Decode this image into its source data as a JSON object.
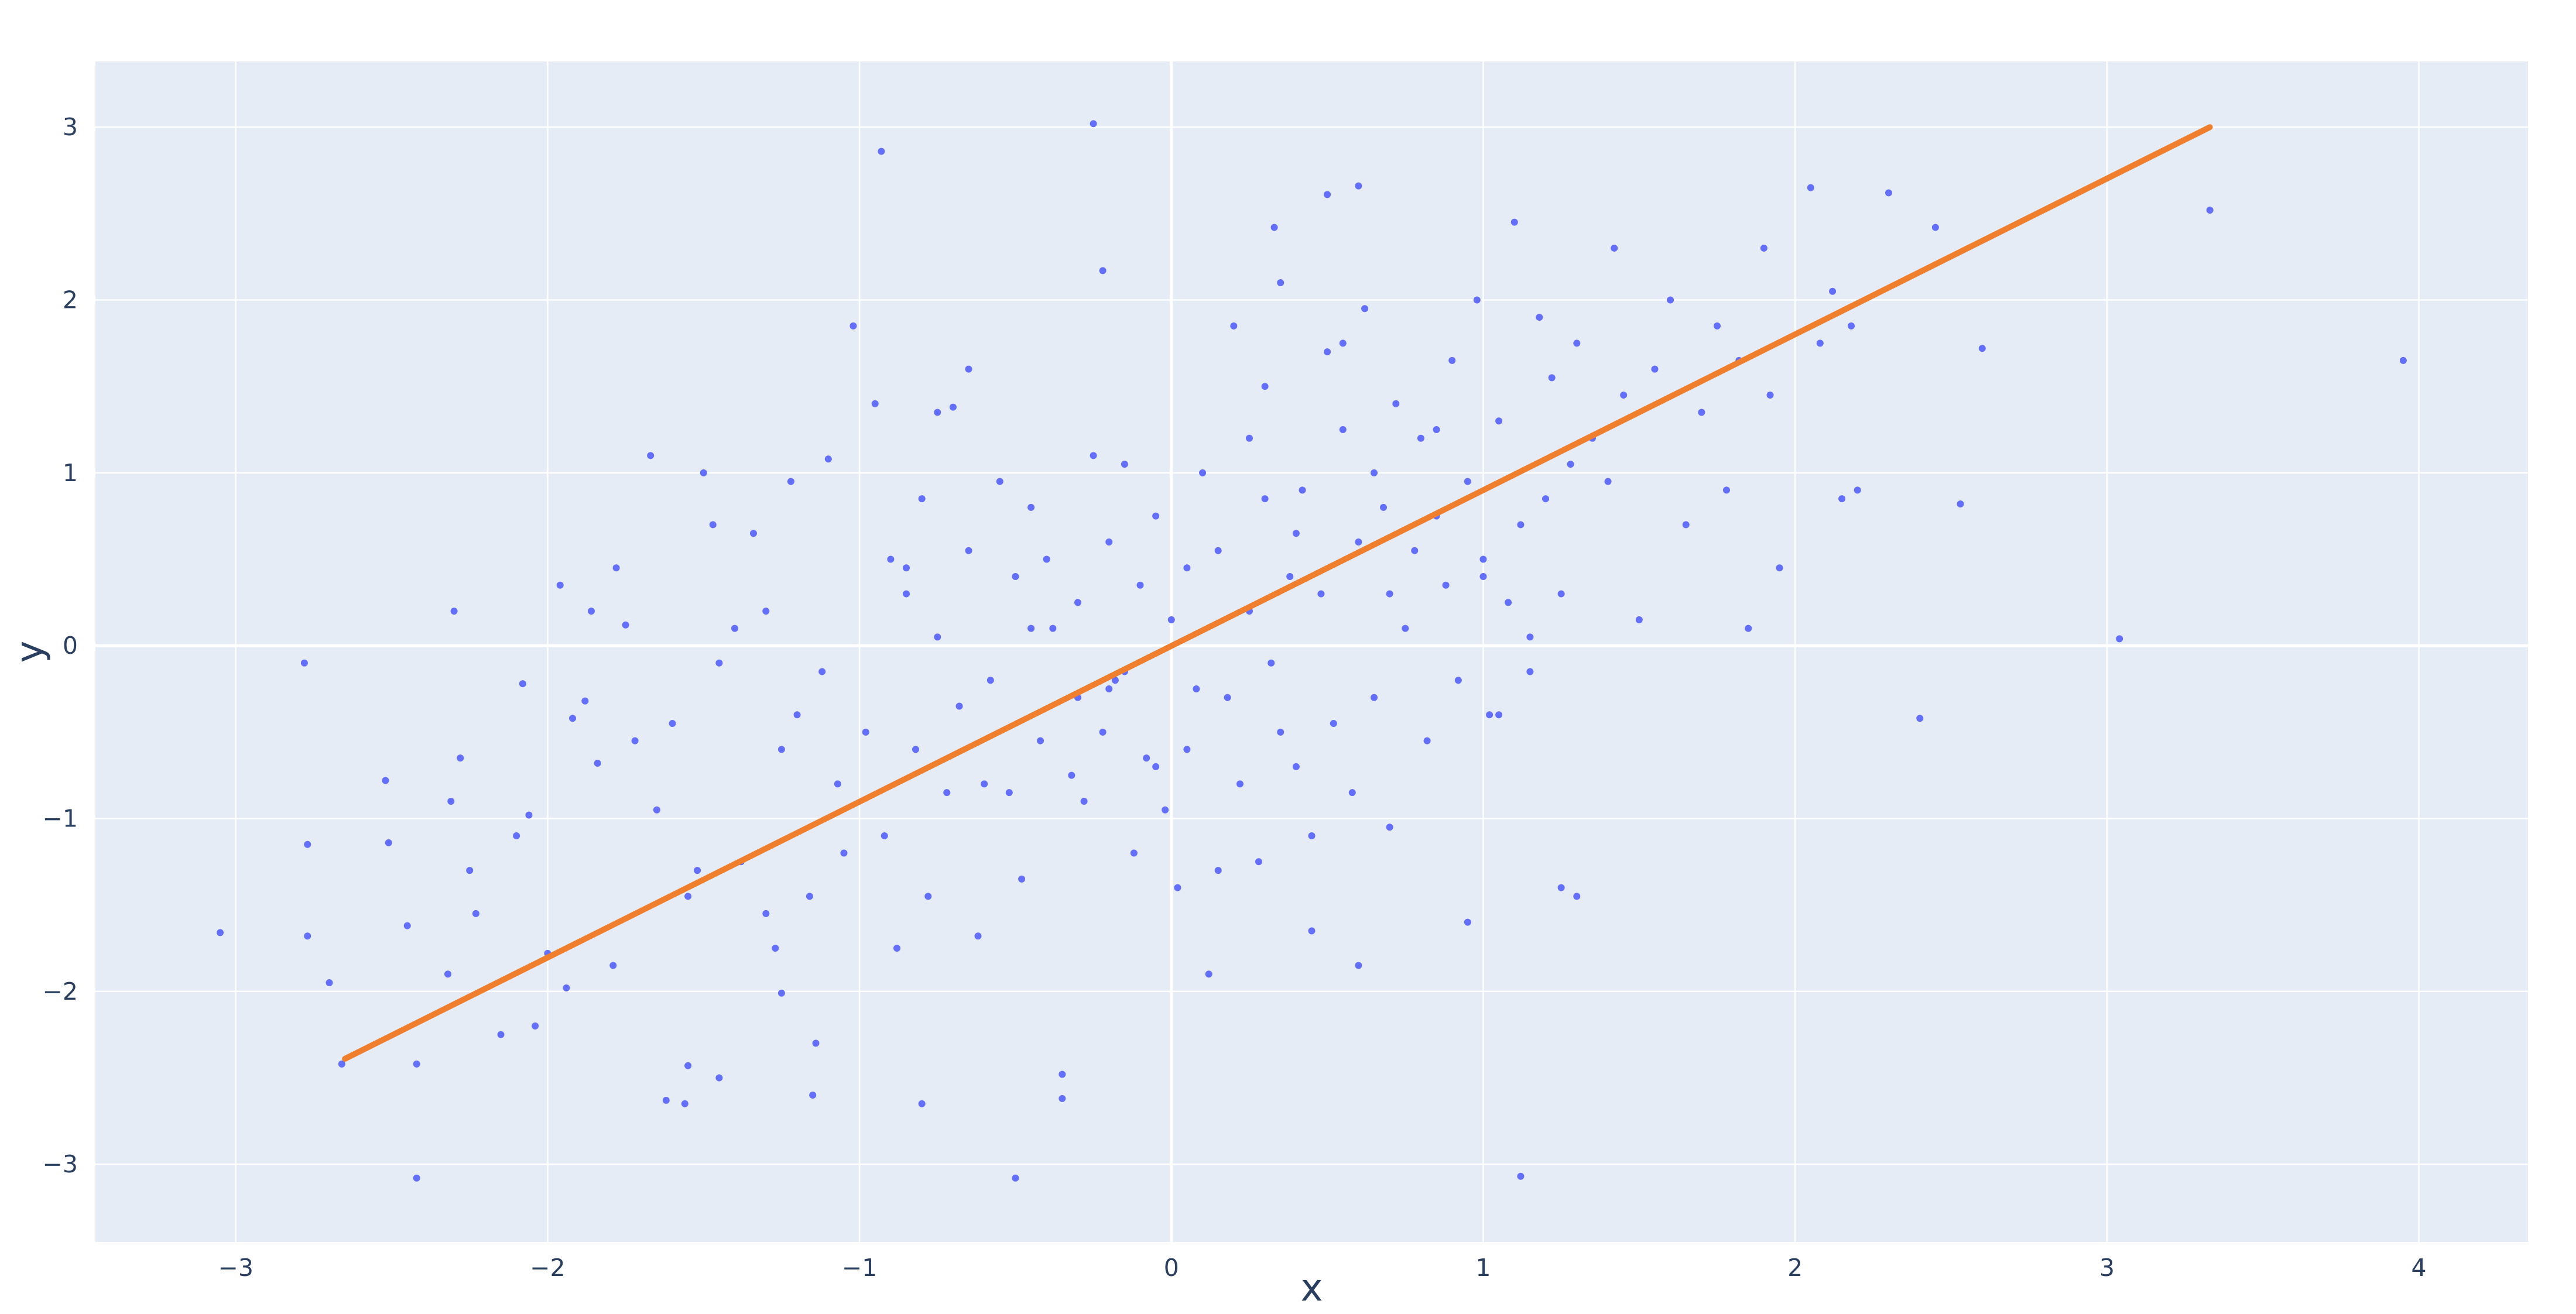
{
  "chart_data": {
    "type": "scatter",
    "title": "",
    "xlabel": "x",
    "ylabel": "y",
    "xlim": [
      -3.45,
      4.35
    ],
    "ylim": [
      -3.45,
      3.38
    ],
    "x_ticks": [
      -3,
      -2,
      -1,
      0,
      1,
      2,
      3,
      4
    ],
    "y_ticks": [
      -3,
      -2,
      -1,
      0,
      1,
      2,
      3
    ],
    "x_tick_labels": [
      "−3",
      "−2",
      "−1",
      "0",
      "1",
      "2",
      "3",
      "4"
    ],
    "y_tick_labels": [
      "−3",
      "−2",
      "−1",
      "0",
      "1",
      "2",
      "3"
    ],
    "grid": true,
    "legend": "none",
    "colors": {
      "plot_background": "#e5ecf6",
      "grid": "#ffffff",
      "points": "#636efa",
      "trend_line": "#ef7f2d",
      "text": "#2a3f5f"
    },
    "series": [
      {
        "type": "scatter",
        "x": [
          -3.05,
          -2.78,
          -2.77,
          -2.77,
          -2.7,
          -2.66,
          -2.52,
          -2.51,
          -2.45,
          -2.42,
          -2.32,
          -2.31,
          -2.3,
          -2.28,
          -2.25,
          -2.23,
          -2.15,
          -2.1,
          -2.08,
          -2.06,
          -2.04,
          -2.0,
          -1.96,
          -1.94,
          -1.92,
          -1.88,
          -1.86,
          -1.84,
          -1.79,
          -1.78,
          -1.75,
          -1.72,
          -1.67,
          -1.65,
          -1.6,
          -1.56,
          -1.55,
          -1.52,
          -1.5,
          -1.47,
          -1.45,
          -1.4,
          -1.38,
          -1.34,
          -1.3,
          -1.27,
          -1.25,
          -1.22,
          -1.2,
          -1.16,
          -1.14,
          -1.12,
          -1.1,
          -1.07,
          -1.05,
          -1.02,
          -0.98,
          -0.95,
          -0.92,
          -0.9,
          -0.88,
          -0.85,
          -0.82,
          -0.8,
          -0.78,
          -0.75,
          -0.72,
          -0.7,
          -0.68,
          -0.65,
          -0.62,
          -0.58,
          -0.55,
          -0.52,
          -0.5,
          -0.48,
          -0.45,
          -0.42,
          -0.38,
          -0.35,
          -0.32,
          -0.3,
          -0.28,
          -0.25,
          -0.22,
          -0.2,
          -0.18,
          -0.15,
          -0.12,
          -0.1,
          -0.08,
          -0.05,
          -0.02,
          0.0,
          0.02,
          0.05,
          0.08,
          0.1,
          0.12,
          0.15,
          0.18,
          0.2,
          0.22,
          0.25,
          0.28,
          0.3,
          0.32,
          0.35,
          0.38,
          0.4,
          0.42,
          0.45,
          0.48,
          0.5,
          0.52,
          0.55,
          0.58,
          0.6,
          0.62,
          0.65,
          0.68,
          0.7,
          0.72,
          0.75,
          0.78,
          0.8,
          0.82,
          0.85,
          0.88,
          0.9,
          0.92,
          0.95,
          0.98,
          1.0,
          1.02,
          1.05,
          1.08,
          1.1,
          1.12,
          1.15,
          1.18,
          1.2,
          1.22,
          1.25,
          1.28,
          1.3,
          1.35,
          1.4,
          1.42,
          1.45,
          1.5,
          1.55,
          1.6,
          1.65,
          1.7,
          1.75,
          1.78,
          1.82,
          1.85,
          1.9,
          1.92,
          1.95,
          2.05,
          2.08,
          2.12,
          2.15,
          2.18,
          2.2,
          2.3,
          2.4,
          2.45,
          2.53,
          2.6,
          3.04,
          3.33,
          3.95,
          -0.25,
          -0.22,
          -0.93,
          0.33,
          1.12,
          0.5,
          0.6,
          -1.25,
          -1.55,
          -1.62,
          -1.45,
          -0.8,
          -0.35,
          -2.42,
          -1.15,
          -0.5,
          0.15,
          0.45,
          1.25,
          0.6,
          0.95,
          1.3,
          -0.3,
          -0.6,
          -0.05,
          0.25,
          -0.75,
          -0.4,
          0.85,
          1.05,
          -1.3,
          -0.65,
          0.35,
          0.7,
          -0.15,
          0.4,
          -0.45,
          0.55,
          1.15,
          0.05,
          -0.85,
          0.65,
          -0.2,
          0.3,
          1.0
        ],
        "y": [
          -1.66,
          -0.1,
          -1.68,
          -1.15,
          -1.95,
          -2.42,
          -0.78,
          -1.14,
          -1.62,
          -3.08,
          -1.9,
          -0.9,
          0.2,
          -0.65,
          -1.3,
          -1.55,
          -2.25,
          -1.1,
          -0.22,
          -0.98,
          -2.2,
          -1.78,
          0.35,
          -1.98,
          -0.42,
          -0.32,
          0.2,
          -0.68,
          -1.85,
          0.45,
          0.12,
          -0.55,
          1.1,
          -0.95,
          -0.45,
          -2.65,
          -1.45,
          -1.3,
          1.0,
          0.7,
          -0.1,
          0.1,
          -1.25,
          0.65,
          -1.55,
          -1.75,
          -0.6,
          0.95,
          -0.4,
          -1.45,
          -2.3,
          -0.15,
          1.08,
          -0.8,
          -1.2,
          1.85,
          -0.5,
          1.4,
          -1.1,
          0.5,
          -1.75,
          0.3,
          -0.6,
          0.85,
          -1.45,
          0.05,
          -0.85,
          1.38,
          -0.35,
          0.55,
          -1.68,
          -0.2,
          0.95,
          -0.85,
          0.4,
          -1.35,
          0.8,
          -0.55,
          0.1,
          -2.62,
          -0.75,
          0.25,
          -0.9,
          1.1,
          -0.5,
          0.6,
          -0.2,
          1.05,
          -1.2,
          0.35,
          -0.65,
          0.75,
          -0.95,
          0.15,
          -1.4,
          0.45,
          -0.25,
          1.0,
          -1.9,
          0.55,
          -0.3,
          1.85,
          -0.8,
          0.2,
          -1.25,
          1.5,
          -0.1,
          2.1,
          0.4,
          -0.7,
          0.9,
          -1.1,
          0.3,
          1.7,
          -0.45,
          1.25,
          -0.85,
          0.6,
          1.95,
          -0.3,
          0.8,
          -1.05,
          1.4,
          0.1,
          0.55,
          1.2,
          -0.55,
          0.75,
          0.35,
          1.65,
          -0.2,
          0.95,
          2.0,
          0.5,
          -0.4,
          1.3,
          0.25,
          2.45,
          0.7,
          -0.15,
          1.9,
          0.85,
          1.55,
          0.3,
          1.05,
          1.75,
          1.2,
          0.95,
          2.3,
          1.45,
          0.15,
          1.6,
          2.0,
          0.7,
          1.35,
          1.85,
          0.9,
          1.65,
          0.1,
          2.3,
          1.45,
          0.45,
          2.65,
          1.75,
          2.05,
          0.85,
          1.85,
          0.9,
          2.62,
          -0.42,
          2.42,
          0.82,
          1.72,
          0.04,
          2.52,
          1.65,
          3.02,
          2.17,
          2.86,
          2.42,
          -3.07,
          2.61,
          2.66,
          -2.01,
          -2.43,
          -2.63,
          -2.5,
          -2.65,
          -2.48,
          -2.42,
          -2.6,
          -3.08,
          -1.3,
          -1.65,
          -1.4,
          -1.85,
          -1.6,
          -1.45,
          -0.3,
          -0.8,
          -0.7,
          1.2,
          1.35,
          0.5,
          1.25,
          -0.4,
          0.2,
          1.6,
          -0.5,
          0.3,
          -0.15,
          0.65,
          0.1,
          1.75,
          0.05,
          -0.6,
          0.45,
          1.0,
          -0.25,
          0.85,
          0.4
        ]
      },
      {
        "type": "line",
        "x": [
          -2.65,
          3.33
        ],
        "y": [
          -2.39,
          3.0
        ]
      }
    ]
  }
}
